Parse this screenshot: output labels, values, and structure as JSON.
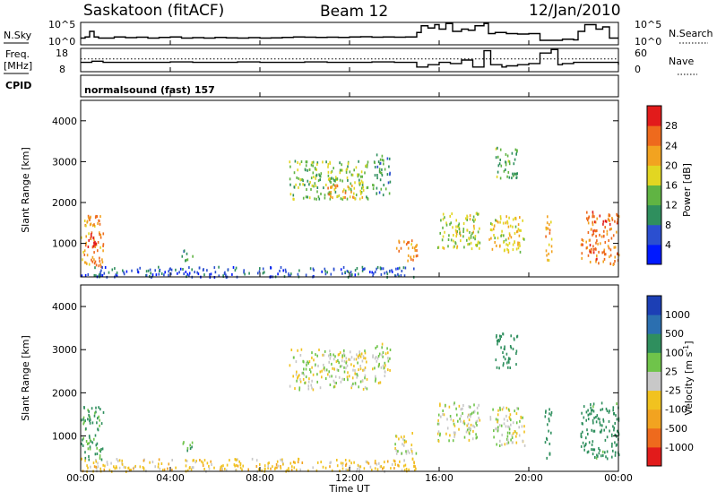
{
  "header": {
    "station": "Saskatoon (fitACF)",
    "beam": "Beam 12",
    "date": "12/Jan/2010"
  },
  "top_panel": {
    "left_label": "N.Sky",
    "right_label": "N.Search",
    "yticks": [
      "10^5",
      "10^0"
    ],
    "noise_sky_trace": {
      "x_hours": [
        0,
        0.2,
        0.4,
        0.6,
        0.8,
        1,
        1.5,
        2,
        2.5,
        3,
        3.5,
        4,
        4.5,
        5,
        5.5,
        6,
        6.5,
        7,
        7.5,
        8,
        8.5,
        9,
        9.5,
        10,
        10.5,
        11,
        11.5,
        12,
        12.5,
        13,
        13.5,
        14,
        14.5,
        15,
        15.2,
        15.5,
        15.8,
        16,
        16.3,
        16.6,
        17,
        17.3,
        17.6,
        18,
        18.2,
        18.5,
        19,
        19.5,
        20,
        20.5,
        21,
        21.5,
        22,
        22.2,
        22.5,
        23,
        23.3,
        23.6,
        24
      ],
      "level": [
        0.3,
        0.35,
        0.6,
        0.35,
        0.3,
        0.3,
        0.35,
        0.32,
        0.34,
        0.3,
        0.33,
        0.35,
        0.3,
        0.32,
        0.3,
        0.33,
        0.31,
        0.3,
        0.32,
        0.3,
        0.31,
        0.33,
        0.35,
        0.34,
        0.33,
        0.34,
        0.33,
        0.35,
        0.36,
        0.34,
        0.35,
        0.34,
        0.35,
        0.55,
        0.85,
        0.75,
        0.9,
        0.7,
        0.95,
        0.6,
        0.7,
        0.65,
        0.85,
        0.95,
        0.5,
        0.55,
        0.5,
        0.48,
        0.5,
        0.2,
        0.2,
        0.25,
        0.22,
        0.6,
        0.9,
        0.7,
        0.8,
        0.3,
        0.3
      ]
    }
  },
  "freq_panel": {
    "left_label_1": "Freq.",
    "left_label_2": "[MHz]",
    "yticks_left": [
      "18",
      "8"
    ],
    "right_label": "Nave",
    "yticks_right": [
      "60",
      "0"
    ],
    "freq_trace": {
      "x_hours": [
        0,
        0.5,
        1,
        2,
        3,
        4,
        5,
        6,
        7,
        8,
        9,
        10,
        11,
        12,
        13,
        14,
        15,
        15.5,
        16,
        16.5,
        17,
        17.5,
        18,
        18.3,
        18.8,
        19,
        19.5,
        20,
        20.5,
        21,
        21.3,
        21.5,
        22,
        23,
        24
      ],
      "level": [
        0.4,
        0.45,
        0.4,
        0.4,
        0.4,
        0.42,
        0.4,
        0.4,
        0.42,
        0.4,
        0.4,
        0.42,
        0.4,
        0.4,
        0.42,
        0.4,
        0.2,
        0.3,
        0.4,
        0.35,
        0.5,
        0.2,
        0.9,
        0.3,
        0.2,
        0.25,
        0.3,
        0.35,
        0.8,
        0.95,
        0.3,
        0.35,
        0.4,
        0.4,
        0.3
      ]
    },
    "nave_dotted_level": 0.55
  },
  "cpid_label": "CPID",
  "program_label": "normalsound (fast) 157",
  "power_panel": {
    "ylabel": "Slant Range [km]",
    "yticks": [
      "1000",
      "2000",
      "3000",
      "4000"
    ],
    "colorbar_label": "Power [dB]",
    "colorbar_ticks": [
      "4",
      "8",
      "12",
      "16",
      "20",
      "24",
      "28"
    ],
    "colorbar_colors": [
      "#0019ff",
      "#2b4fd0",
      "#2f8f5e",
      "#60b443",
      "#e2d622",
      "#f2a320",
      "#ee6a1d",
      "#e21b1b"
    ]
  },
  "velocity_panel": {
    "ylabel": "Slant Range [km]",
    "yticks": [
      "1000",
      "2000",
      "3000",
      "4000"
    ],
    "colorbar_label": "Velocity [m s",
    "colorbar_label_sup": "-1",
    "colorbar_label_end": "]",
    "colorbar_ticks": [
      "-1000",
      "-500",
      "-100",
      "-25",
      "25",
      "100",
      "500",
      "1000"
    ],
    "colorbar_colors": [
      "#e21b1b",
      "#ee6a1d",
      "#f2a320",
      "#f1c21f",
      "#c8c8c8",
      "#6fc44a",
      "#2f8f5e",
      "#2b6fb0",
      "#1c3fb5"
    ]
  },
  "x_axis": {
    "label": "Time UT",
    "ticks": [
      "00:00",
      "04:00",
      "08:00",
      "12:00",
      "16:00",
      "20:00",
      "00:00"
    ]
  },
  "chart_data": [
    {
      "type": "heatmap",
      "title": "Power [dB]",
      "xlabel": "Time UT",
      "ylabel": "Slant Range [km]",
      "xlim_hours": [
        0,
        24
      ],
      "ylim": [
        180,
        4500
      ],
      "clim": [
        0,
        30
      ],
      "regions": [
        {
          "t0": 0.0,
          "t1": 1.0,
          "r0": 450,
          "r1": 1700,
          "val": 22
        },
        {
          "t0": 0.2,
          "t1": 0.8,
          "r0": 850,
          "r1": 1250,
          "val": 28
        },
        {
          "t0": 0.0,
          "t1": 15.0,
          "r0": 200,
          "r1": 450,
          "val": 6
        },
        {
          "t0": 4.5,
          "t1": 5.0,
          "r0": 600,
          "r1": 900,
          "val": 10
        },
        {
          "t0": 9.3,
          "t1": 12.8,
          "r0": 2100,
          "r1": 3050,
          "val": 14
        },
        {
          "t0": 11.0,
          "t1": 12.7,
          "r0": 2150,
          "r1": 2450,
          "val": 20
        },
        {
          "t0": 13.0,
          "t1": 13.8,
          "r0": 2200,
          "r1": 3200,
          "val": 10
        },
        {
          "t0": 14.0,
          "t1": 15.0,
          "r0": 600,
          "r1": 1100,
          "val": 22
        },
        {
          "t0": 15.9,
          "t1": 17.8,
          "r0": 900,
          "r1": 1800,
          "val": 16
        },
        {
          "t0": 18.2,
          "t1": 19.8,
          "r0": 800,
          "r1": 1700,
          "val": 18
        },
        {
          "t0": 18.5,
          "t1": 19.5,
          "r0": 2600,
          "r1": 3400,
          "val": 12
        },
        {
          "t0": 20.7,
          "t1": 21.0,
          "r0": 500,
          "r1": 1700,
          "val": 20
        },
        {
          "t0": 22.3,
          "t1": 24.0,
          "r0": 500,
          "r1": 1800,
          "val": 24
        }
      ]
    },
    {
      "type": "heatmap",
      "title": "Velocity [m s-1]",
      "xlabel": "Time UT",
      "ylabel": "Slant Range [km]",
      "xlim_hours": [
        0,
        24
      ],
      "ylim": [
        180,
        4500
      ],
      "clim": [
        -1000,
        1000
      ],
      "regions": [
        {
          "t0": 0.0,
          "t1": 1.0,
          "r0": 450,
          "r1": 1700,
          "val": 120
        },
        {
          "t0": 0.0,
          "t1": 15.0,
          "r0": 200,
          "r1": 500,
          "val": -60
        },
        {
          "t0": 4.5,
          "t1": 5.0,
          "r0": 600,
          "r1": 900,
          "val": 120
        },
        {
          "t0": 9.3,
          "t1": 12.8,
          "r0": 2100,
          "r1": 3050,
          "val": 0
        },
        {
          "t0": 13.0,
          "t1": 13.8,
          "r0": 2200,
          "r1": 3200,
          "val": 0
        },
        {
          "t0": 14.0,
          "t1": 15.0,
          "r0": 600,
          "r1": 1100,
          "val": 0
        },
        {
          "t0": 15.9,
          "t1": 17.8,
          "r0": 900,
          "r1": 1800,
          "val": 0
        },
        {
          "t0": 18.2,
          "t1": 19.8,
          "r0": 800,
          "r1": 1700,
          "val": 0
        },
        {
          "t0": 18.5,
          "t1": 19.5,
          "r0": 2600,
          "r1": 3400,
          "val": 200
        },
        {
          "t0": 20.7,
          "t1": 21.0,
          "r0": 500,
          "r1": 1700,
          "val": 300
        },
        {
          "t0": 22.3,
          "t1": 24.0,
          "r0": 500,
          "r1": 1800,
          "val": 150
        }
      ]
    }
  ]
}
